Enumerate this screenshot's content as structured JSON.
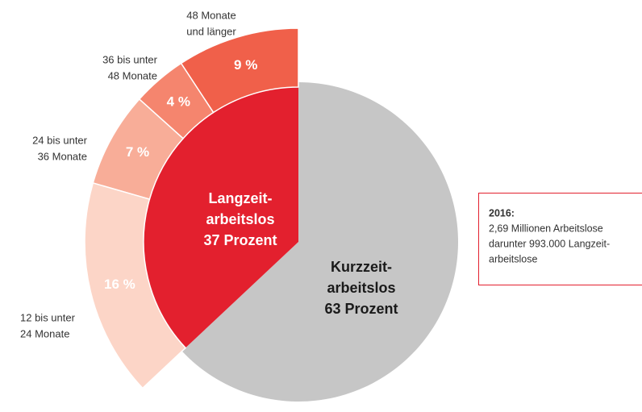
{
  "chart_data": {
    "type": "pie",
    "inner": {
      "categories": [
        [
          "Kurzzeit-",
          "arbeitslos",
          "63 Prozent"
        ],
        [
          "Langzeit-",
          "arbeitslos",
          "37 Prozent"
        ]
      ],
      "values": [
        63,
        37
      ],
      "colors": [
        "#c6c6c6",
        "#e3202e"
      ],
      "label_colors": [
        "#1a1a1a",
        "#ffffff"
      ]
    },
    "outer": {
      "categories": [
        [
          "48 Monate",
          "und länger"
        ],
        [
          "36 bis unter",
          "48 Monate"
        ],
        [
          "24 bis unter",
          "36 Monate"
        ],
        [
          "12 bis unter",
          "24 Monate"
        ]
      ],
      "values": [
        9,
        4,
        7,
        16
      ],
      "value_labels": [
        "9 %",
        "4 %",
        "7 %",
        "16 %"
      ],
      "colors": [
        "#f0604a",
        "#f5856e",
        "#f8ad98",
        "#fcd5c7"
      ]
    },
    "annotation": {
      "title": "2016:",
      "lines": [
        "2,69 Millionen Arbeitslose",
        "darunter 993.000 Langzeit-",
        "arbeitslose"
      ]
    }
  }
}
